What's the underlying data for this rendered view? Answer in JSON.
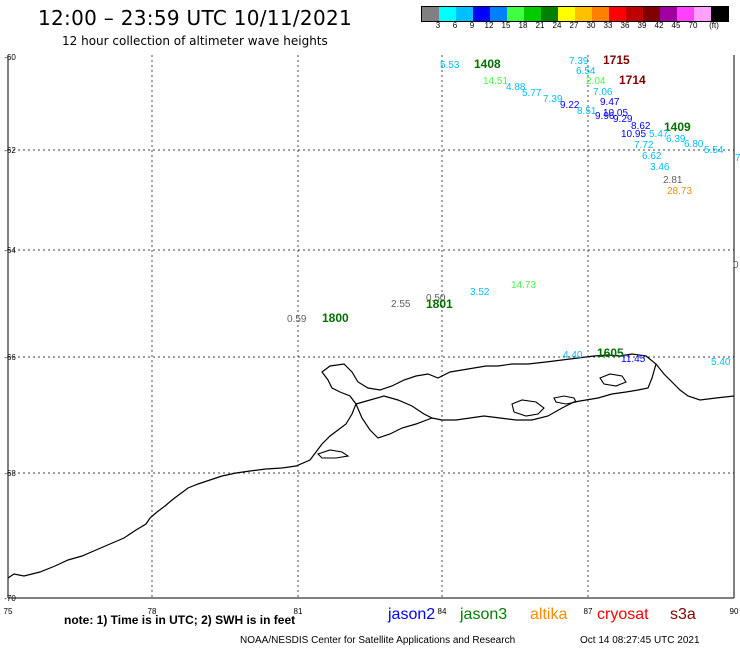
{
  "header": {
    "title": "12:00 – 23:59 UTC 10/11/2021",
    "subtitle": "12 hour collection of altimeter wave heights"
  },
  "legend": {
    "colors": [
      "#808080",
      "#00ffff",
      "#00bfff",
      "#0000ff",
      "#0080ff",
      "#40ff40",
      "#00cc00",
      "#008000",
      "#ffff00",
      "#ffc000",
      "#ff8000",
      "#ff0000",
      "#c00000",
      "#800000",
      "#a000a0",
      "#ff40ff",
      "#ffa0ff",
      "#000000"
    ],
    "labels": [
      "3",
      "6",
      "9",
      "12",
      "15",
      "18",
      "21",
      "24",
      "27",
      "30",
      "33",
      "36",
      "39",
      "42",
      "45",
      "70"
    ],
    "unit": "(ft)"
  },
  "axes": {
    "lat_labels": [
      "-60",
      "-62",
      "-64",
      "-66",
      "-68",
      "-70"
    ],
    "lon_labels": [
      "75",
      "78",
      "81",
      "84",
      "87",
      "90"
    ]
  },
  "observations": [
    {
      "text": "5.53",
      "color": "#00bfff"
    },
    {
      "text": "1408",
      "color": "#007000",
      "bold": true
    },
    {
      "text": "7.39",
      "color": "#00bfff"
    },
    {
      "text": "1715",
      "color": "#800000",
      "bold": true
    },
    {
      "text": "6.54",
      "color": "#00bfff"
    },
    {
      "text": "14.51",
      "color": "#40ff40"
    },
    {
      "text": "2.04",
      "color": "#40ff40"
    },
    {
      "text": "1714",
      "color": "#800000",
      "bold": true
    },
    {
      "text": "4.88",
      "color": "#00bfff"
    },
    {
      "text": "5.77",
      "color": "#00bfff"
    },
    {
      "text": "7.06",
      "color": "#00bfff"
    },
    {
      "text": "7.39",
      "color": "#00bfff"
    },
    {
      "text": "9.22",
      "color": "#0000ff"
    },
    {
      "text": "9.47",
      "color": "#0000ff"
    },
    {
      "text": "8.51",
      "color": "#00bfff"
    },
    {
      "text": "10.05",
      "color": "#0000ff"
    },
    {
      "text": "9.96",
      "color": "#0000ff"
    },
    {
      "text": "9.29",
      "color": "#0000ff"
    },
    {
      "text": "8.62",
      "color": "#0000ff"
    },
    {
      "text": "1409",
      "color": "#007000",
      "bold": true
    },
    {
      "text": "10.95",
      "color": "#0000ff"
    },
    {
      "text": "5.47",
      "color": "#00bfff"
    },
    {
      "text": "6.39",
      "color": "#00bfff"
    },
    {
      "text": "7.72",
      "color": "#00bfff"
    },
    {
      "text": "6.80",
      "color": "#00bfff"
    },
    {
      "text": "5.54",
      "color": "#00bfff"
    },
    {
      "text": "7",
      "color": "#00bfff"
    },
    {
      "text": "6.62",
      "color": "#00bfff"
    },
    {
      "text": "3.46",
      "color": "#00bfff"
    },
    {
      "text": "2.81",
      "color": "#606060"
    },
    {
      "text": "28.73",
      "color": "#ff8c00"
    },
    {
      "text": "0",
      "color": "#606060"
    },
    {
      "text": "14.73",
      "color": "#40ff40"
    },
    {
      "text": "3.52",
      "color": "#00bfff"
    },
    {
      "text": "0.50",
      "color": "#606060"
    },
    {
      "text": "2.55",
      "color": "#606060"
    },
    {
      "text": "1801",
      "color": "#007000",
      "bold": true
    },
    {
      "text": "0.59",
      "color": "#606060"
    },
    {
      "text": "1800",
      "color": "#007000",
      "bold": true
    },
    {
      "text": "4.40",
      "color": "#00bfff"
    },
    {
      "text": "1605",
      "color": "#007000",
      "bold": true
    },
    {
      "text": "11.45",
      "color": "#0000ff"
    },
    {
      "text": "5.40",
      "color": "#00bfff"
    }
  ],
  "footer": {
    "note": "note: 1) Time is in UTC; 2) SWH is in feet",
    "satellites": [
      {
        "name": "jason2",
        "color": "#0000ff"
      },
      {
        "name": "jason3",
        "color": "#008000"
      },
      {
        "name": "altika",
        "color": "#ff8c00"
      },
      {
        "name": "cryosat",
        "color": "#ff0000"
      },
      {
        "name": "s3a",
        "color": "#800000"
      }
    ],
    "credit": "NOAA/NESDIS Center for Satellite Applications and Research",
    "timestamp": "Oct 14 08:27:45 UTC 2021"
  }
}
